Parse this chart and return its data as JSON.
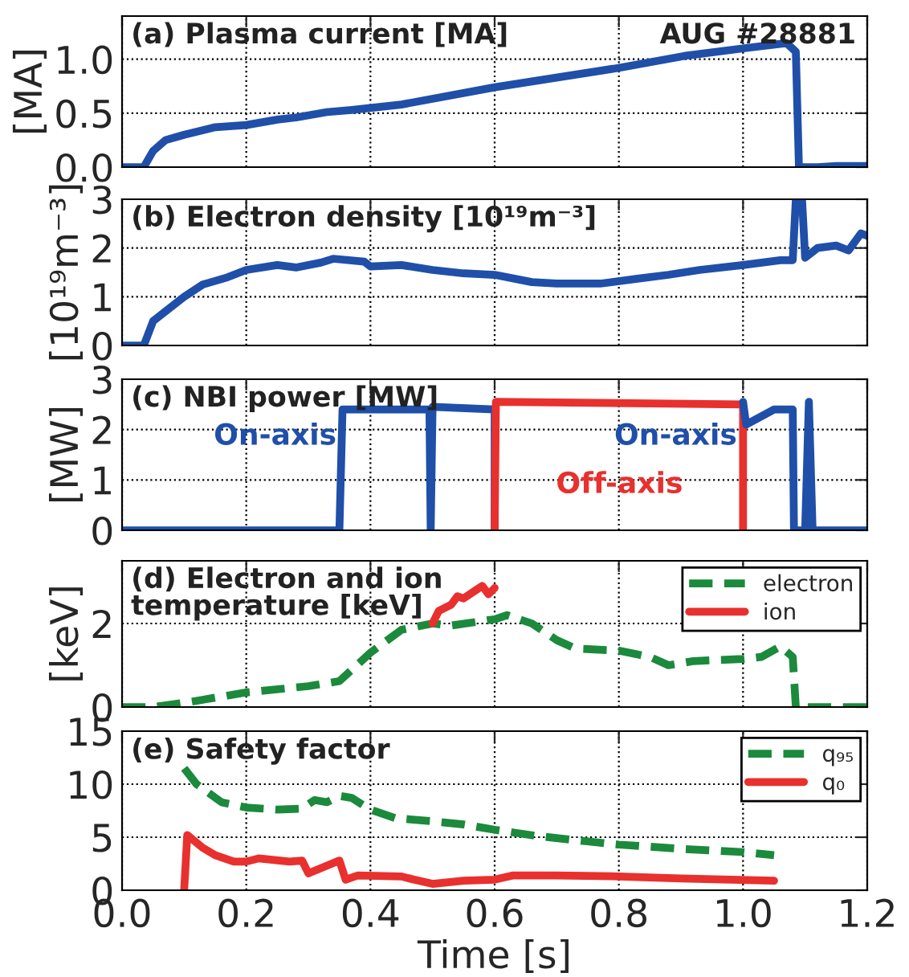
{
  "chart_data": [
    {
      "type": "line",
      "title": "(a) Plasma current [MA]",
      "ylabel": "[MA]",
      "annotations": [
        "AUG #28881"
      ],
      "xlim": [
        0,
        1.2
      ],
      "xticks": [
        0,
        0.2,
        0.4,
        0.6,
        0.8,
        1.0,
        1.2
      ],
      "ylim": [
        0,
        1.4
      ],
      "yticks": [
        {
          "value": 0,
          "label": "0.0"
        },
        0.5,
        {
          "value": 1,
          "label": "1.0"
        }
      ],
      "grid": true,
      "tick_labels": "y",
      "series": [
        {
          "color": "#1f4fa8",
          "line_style": "solid",
          "x": [
            0,
            0.035,
            0.05,
            0.07,
            0.1,
            0.15,
            0.2,
            0.25,
            0.28,
            0.33,
            0.37,
            0.45,
            0.6,
            0.8,
            0.905,
            1.0,
            1.07,
            1.085,
            1.09,
            1.12,
            1.15,
            1.2
          ],
          "values": [
            0,
            0,
            0.15,
            0.25,
            0.3,
            0.37,
            0.39,
            0.44,
            0.46,
            0.51,
            0.53,
            0.58,
            0.74,
            0.92,
            1.03,
            1.1,
            1.15,
            1.07,
            0,
            0,
            0.01,
            0.01
          ]
        }
      ]
    },
    {
      "type": "line",
      "title": "(b) Electron density [10¹⁹m⁻³]",
      "ylabel": "[10¹⁹m⁻³]",
      "xlim": [
        0,
        1.2
      ],
      "xticks": [
        0,
        0.2,
        0.4,
        0.6,
        0.8,
        1.0,
        1.2
      ],
      "ylim": [
        0,
        3
      ],
      "yticks": [
        0,
        1,
        2,
        3
      ],
      "grid": true,
      "tick_labels": "y",
      "series": [
        {
          "color": "#1f4fa8",
          "line_style": "solid",
          "x": [
            0,
            0.035,
            0.05,
            0.09,
            0.1,
            0.13,
            0.17,
            0.2,
            0.25,
            0.28,
            0.32,
            0.34,
            0.39,
            0.4,
            0.45,
            0.5,
            0.55,
            0.6,
            0.66,
            0.7,
            0.77,
            0.83,
            0.88,
            0.93,
            1.0,
            1.06,
            1.08,
            1.085,
            1.095,
            1.1,
            1.12,
            1.15,
            1.17,
            1.19,
            1.2
          ],
          "values": [
            0,
            0,
            0.5,
            0.9,
            1.0,
            1.25,
            1.4,
            1.55,
            1.65,
            1.6,
            1.7,
            1.78,
            1.72,
            1.62,
            1.65,
            1.55,
            1.48,
            1.45,
            1.3,
            1.27,
            1.27,
            1.37,
            1.45,
            1.55,
            1.65,
            1.75,
            1.75,
            3.0,
            3.0,
            1.8,
            2.0,
            2.05,
            1.95,
            2.3,
            2.25
          ]
        }
      ]
    },
    {
      "type": "line",
      "title": "(c) NBI power [MW]",
      "ylabel": "[MW]",
      "xlim": [
        0,
        1.2
      ],
      "xticks": [
        0,
        0.2,
        0.4,
        0.6,
        0.8,
        1.0,
        1.2
      ],
      "ylim": [
        0,
        3
      ],
      "yticks": [
        0,
        1,
        2,
        3
      ],
      "grid": true,
      "tick_labels": "y",
      "series": [
        {
          "name": "On-axis",
          "color": "#1f4fa8",
          "line_style": "solid",
          "x": [
            0,
            0.35,
            0.355,
            0.495,
            0.497,
            0.5,
            0.6,
            0.6
          ],
          "values": [
            0,
            0,
            2.4,
            2.4,
            0,
            2.45,
            2.4,
            0
          ]
        },
        {
          "name": "Off-axis",
          "color": "#e8302e",
          "line_style": "solid",
          "x": [
            0.6,
            0.602,
            1.0,
            1.0
          ],
          "values": [
            0,
            2.55,
            2.5,
            0
          ]
        },
        {
          "name": "On-axis",
          "color": "#1f4fa8",
          "line_style": "solid",
          "x": [
            1.0,
            1.005,
            1.05,
            1.08,
            1.082,
            1.1,
            1.106,
            1.112,
            1.2
          ],
          "values": [
            2.55,
            2.1,
            2.4,
            2.4,
            0,
            0,
            2.55,
            0,
            0
          ]
        }
      ]
    },
    {
      "type": "line",
      "title": "(d) Electron and ion\ntemperature [keV]",
      "ylabel": "[keV]",
      "xlim": [
        0,
        1.2
      ],
      "xticks": [
        0,
        0.2,
        0.4,
        0.6,
        0.8,
        1.0,
        1.2
      ],
      "ylim": [
        0,
        3.5
      ],
      "yticks": [
        0,
        2
      ],
      "grid": true,
      "tick_labels": "y",
      "legend": "top right",
      "series": [
        {
          "name": "electron",
          "color": "#1b8a3c",
          "line_style": "dashed",
          "x": [
            0,
            0.05,
            0.1,
            0.2,
            0.3,
            0.35,
            0.4,
            0.45,
            0.5,
            0.53,
            0.6,
            0.62,
            0.66,
            0.7,
            0.73,
            0.8,
            0.85,
            0.88,
            0.92,
            1.0,
            1.03,
            1.06,
            1.08,
            1.085,
            1.2
          ],
          "values": [
            0,
            0,
            0.1,
            0.35,
            0.5,
            0.62,
            1.3,
            1.85,
            2.0,
            1.95,
            2.1,
            2.2,
            2.0,
            1.6,
            1.4,
            1.35,
            1.2,
            1.0,
            1.1,
            1.15,
            1.2,
            1.45,
            1.2,
            0,
            0
          ]
        },
        {
          "name": "ion",
          "color": "#e8302e",
          "line_style": "solid",
          "x": [
            0.5,
            0.51,
            0.53,
            0.54,
            0.55,
            0.57,
            0.58,
            0.59,
            0.6
          ],
          "values": [
            2.0,
            2.3,
            2.45,
            2.65,
            2.6,
            2.8,
            2.9,
            2.7,
            2.85
          ]
        }
      ]
    },
    {
      "type": "line",
      "title": "(e) Safety factor",
      "xlabel": "Time [s]",
      "xlim": [
        0,
        1.2
      ],
      "xticks": [
        {
          "value": 0,
          "label": "0.0"
        },
        0.2,
        0.4,
        0.6,
        0.8,
        {
          "value": 1,
          "label": "1.0"
        },
        1.2
      ],
      "ylim": [
        0,
        15
      ],
      "yticks": [
        0,
        5,
        10,
        15
      ],
      "grid": true,
      "legend": "top right",
      "series": [
        {
          "name": "q₉₅",
          "color": "#1b8a3c",
          "line_style": "dashed",
          "x": [
            0.1,
            0.12,
            0.16,
            0.2,
            0.25,
            0.29,
            0.31,
            0.33,
            0.35,
            0.37,
            0.4,
            0.44,
            0.5,
            0.55,
            0.6,
            0.67,
            0.75,
            0.8,
            0.9,
            1.0,
            1.05
          ],
          "values": [
            11.5,
            10,
            8.3,
            7.8,
            7.6,
            7.7,
            8.5,
            8.3,
            8.9,
            8.7,
            7.6,
            6.8,
            6.5,
            6.2,
            5.7,
            5.1,
            4.6,
            4.3,
            3.9,
            3.6,
            3.3
          ]
        },
        {
          "name": "q₀",
          "color": "#e8302e",
          "line_style": "solid",
          "x": [
            0.1,
            0.105,
            0.13,
            0.15,
            0.18,
            0.2,
            0.22,
            0.27,
            0.29,
            0.3,
            0.35,
            0.36,
            0.38,
            0.45,
            0.47,
            0.5,
            0.55,
            0.6,
            0.63,
            0.7,
            0.8,
            0.9,
            1.05
          ],
          "values": [
            0,
            5.2,
            4.0,
            3.3,
            2.7,
            2.7,
            3.0,
            2.7,
            2.8,
            1.6,
            2.8,
            1.0,
            1.4,
            1.3,
            1.0,
            0.6,
            0.9,
            1.0,
            1.4,
            1.4,
            1.3,
            1.1,
            0.9
          ]
        }
      ]
    }
  ]
}
